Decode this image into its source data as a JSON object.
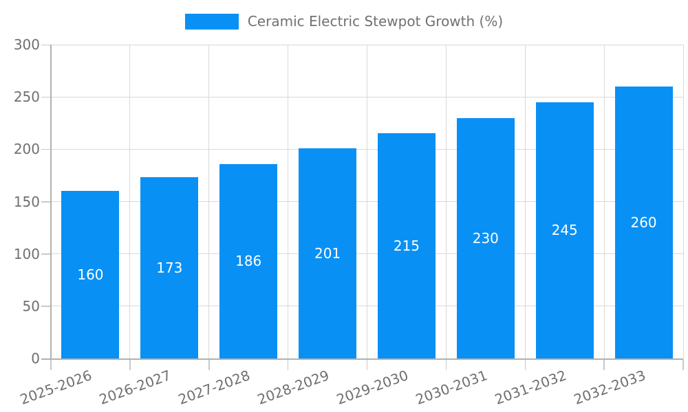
{
  "chart_data": {
    "type": "bar",
    "title": "",
    "legend_label": "Ceramic Electric Stewpot Growth (%)",
    "legend_position": "top",
    "categories": [
      "2025-2026",
      "2026-2027",
      "2027-2028",
      "2028-2029",
      "2029-2030",
      "2030-2031",
      "2031-2032",
      "2032-2033"
    ],
    "values": [
      160,
      173,
      186,
      201,
      215,
      230,
      245,
      260
    ],
    "xlabel": "",
    "ylabel": "",
    "ylim": [
      0,
      300
    ],
    "yticks": [
      0,
      50,
      100,
      150,
      200,
      250,
      300
    ],
    "grid": true,
    "value_labels_position": "inside-center",
    "colors": {
      "bar": "#0990f5",
      "value_label_text": "#ffffff",
      "gridline": "#d9d9d9",
      "axis_line": "#b0b0b0",
      "tick_mark": "#c9c9c9",
      "tick_text": "#6f6f6f",
      "legend_text": "#707070",
      "background": "#ffffff"
    }
  }
}
